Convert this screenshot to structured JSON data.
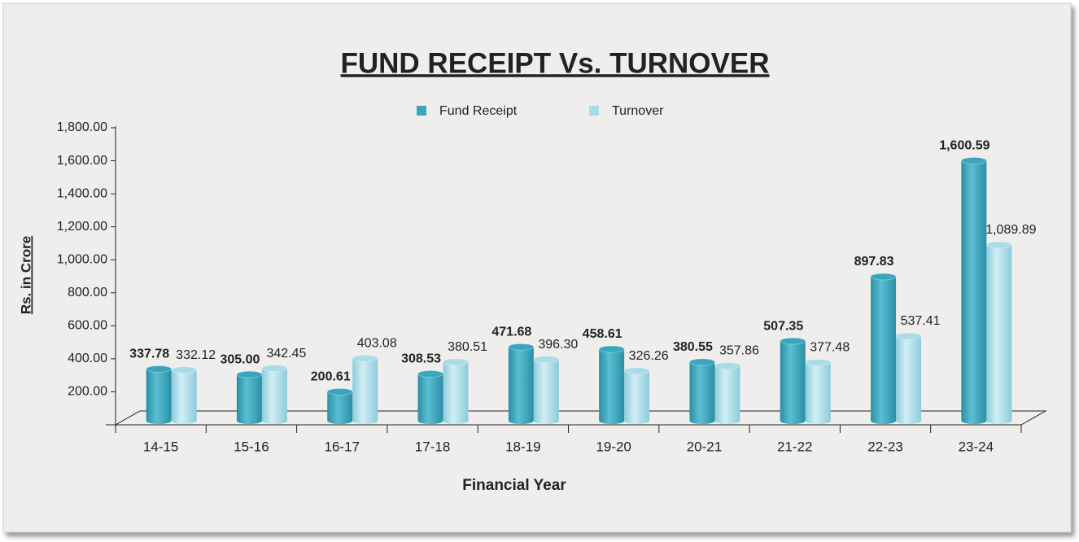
{
  "chart_data": {
    "type": "bar",
    "title": "FUND RECEIPT Vs. TURNOVER",
    "x_label": "Financial Year",
    "y_label": "Rs. in Crore",
    "categories": [
      "14-15",
      "15-16",
      "16-17",
      "17-18",
      "18-19",
      "19-20",
      "20-21",
      "21-22",
      "22-23",
      "23-24"
    ],
    "series": [
      {
        "name": "Fund Receipt",
        "color": "#3aa6bd",
        "values": [
          337.78,
          305.0,
          200.61,
          308.53,
          471.68,
          458.61,
          380.55,
          507.35,
          897.83,
          1600.59
        ],
        "value_labels": [
          "337.78",
          "305.00",
          "200.61",
          "308.53",
          "471.68",
          "458.61",
          "380.55",
          "507.35",
          "897.83",
          "1,600.59"
        ]
      },
      {
        "name": "Turnover",
        "color": "#a9dbe8",
        "values": [
          332.12,
          342.45,
          403.08,
          380.51,
          396.3,
          326.26,
          357.86,
          377.48,
          537.41,
          1089.89
        ],
        "value_labels": [
          "332.12",
          "342.45",
          "403.08",
          "380.51",
          "396.30",
          "326.26",
          "357.86",
          "377.48",
          "537.41",
          "1,089.89"
        ]
      }
    ],
    "ylim": [
      0,
      1800
    ],
    "yticks": [
      {
        "value": 200,
        "label": "200.00"
      },
      {
        "value": 400,
        "label": "400.00"
      },
      {
        "value": 600,
        "label": "600.00"
      },
      {
        "value": 800,
        "label": "800.00"
      },
      {
        "value": 1000,
        "label": "1,000.00"
      },
      {
        "value": 1200,
        "label": "1,200.00"
      },
      {
        "value": 1400,
        "label": "1,400.00"
      },
      {
        "value": 1600,
        "label": "1,600.00"
      },
      {
        "value": 1800,
        "label": "1,800.00"
      }
    ],
    "legend": "top"
  }
}
